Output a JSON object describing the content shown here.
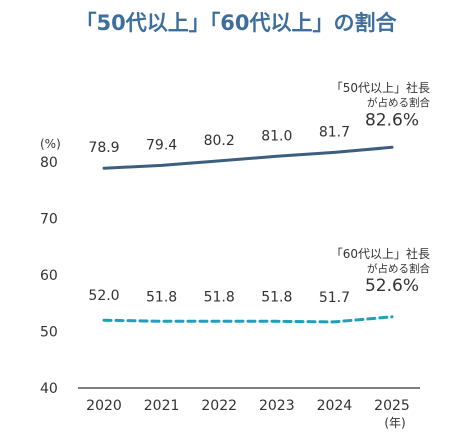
{
  "chart_data": {
    "type": "line",
    "title": "「50代以上」「60代以上」の割合",
    "ylabel": "(%)",
    "xlabel_unit": "(年)",
    "ylim": [
      40,
      85
    ],
    "yticks": [
      40,
      50,
      60,
      70,
      80
    ],
    "categories": [
      "2020",
      "2021",
      "2022",
      "2023",
      "2024",
      "2025"
    ],
    "series": [
      {
        "name_lines": [
          "「50代以上」社長",
          "が占める割合"
        ],
        "values": [
          78.9,
          79.4,
          80.2,
          81.0,
          81.7,
          82.6
        ],
        "value_labels": [
          "78.9",
          "79.4",
          "80.2",
          "81.0",
          "81.7",
          "82.6%"
        ],
        "color": "#3d5f7f",
        "style": "solid"
      },
      {
        "name_lines": [
          "「60代以上」社長",
          "が占める割合"
        ],
        "values": [
          52.0,
          51.8,
          51.8,
          51.8,
          51.7,
          52.6
        ],
        "value_labels": [
          "52.0",
          "51.8",
          "51.8",
          "51.8",
          "51.7",
          "52.6%"
        ],
        "color": "#1ea0b8",
        "style": "dashed"
      }
    ],
    "grid": false,
    "title_color": "#3e6f9c",
    "text_color": "#333333"
  }
}
